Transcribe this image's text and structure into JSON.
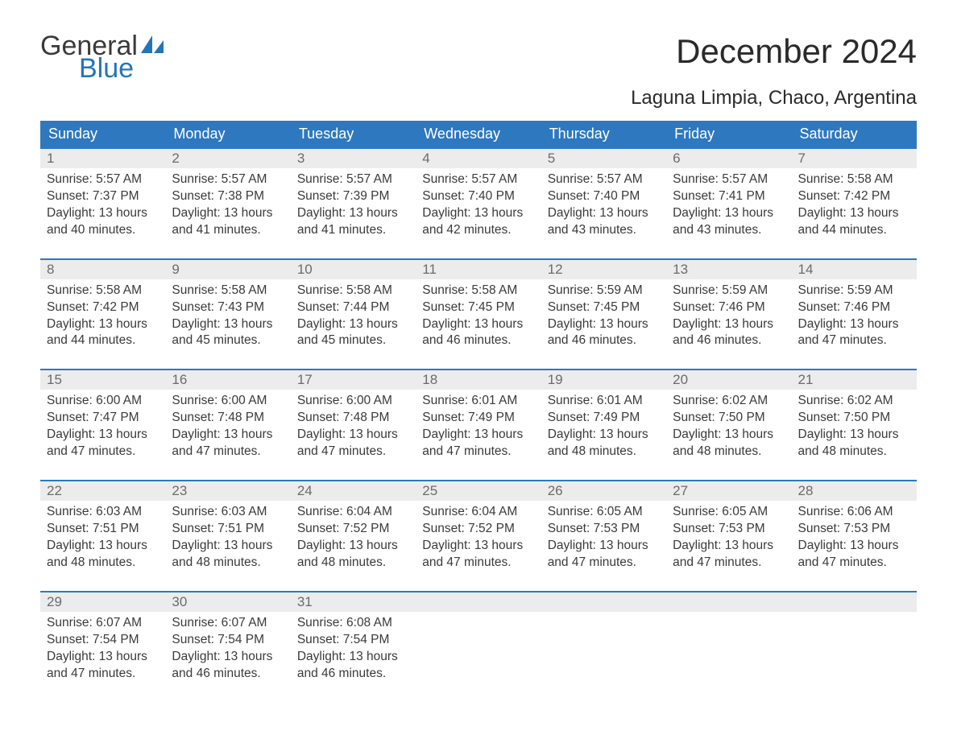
{
  "logo": {
    "text_general": "General",
    "text_blue": "Blue",
    "sail_color": "#2474b8"
  },
  "title": "December 2024",
  "location": "Laguna Limpia, Chaco, Argentina",
  "colors": {
    "header_bg": "#2e78bf",
    "header_text": "#ffffff",
    "daynum_bg": "#ececec",
    "daynum_text": "#6b6b6b",
    "body_text": "#3a3a3a",
    "row_border": "#2e78bf"
  },
  "weekdays": [
    "Sunday",
    "Monday",
    "Tuesday",
    "Wednesday",
    "Thursday",
    "Friday",
    "Saturday"
  ],
  "labels": {
    "sunrise": "Sunrise:",
    "sunset": "Sunset:",
    "daylight": "Daylight:"
  },
  "weeks": [
    [
      {
        "n": "1",
        "sunrise": "5:57 AM",
        "sunset": "7:37 PM",
        "daylight_l1": "13 hours",
        "daylight_l2": "and 40 minutes."
      },
      {
        "n": "2",
        "sunrise": "5:57 AM",
        "sunset": "7:38 PM",
        "daylight_l1": "13 hours",
        "daylight_l2": "and 41 minutes."
      },
      {
        "n": "3",
        "sunrise": "5:57 AM",
        "sunset": "7:39 PM",
        "daylight_l1": "13 hours",
        "daylight_l2": "and 41 minutes."
      },
      {
        "n": "4",
        "sunrise": "5:57 AM",
        "sunset": "7:40 PM",
        "daylight_l1": "13 hours",
        "daylight_l2": "and 42 minutes."
      },
      {
        "n": "5",
        "sunrise": "5:57 AM",
        "sunset": "7:40 PM",
        "daylight_l1": "13 hours",
        "daylight_l2": "and 43 minutes."
      },
      {
        "n": "6",
        "sunrise": "5:57 AM",
        "sunset": "7:41 PM",
        "daylight_l1": "13 hours",
        "daylight_l2": "and 43 minutes."
      },
      {
        "n": "7",
        "sunrise": "5:58 AM",
        "sunset": "7:42 PM",
        "daylight_l1": "13 hours",
        "daylight_l2": "and 44 minutes."
      }
    ],
    [
      {
        "n": "8",
        "sunrise": "5:58 AM",
        "sunset": "7:42 PM",
        "daylight_l1": "13 hours",
        "daylight_l2": "and 44 minutes."
      },
      {
        "n": "9",
        "sunrise": "5:58 AM",
        "sunset": "7:43 PM",
        "daylight_l1": "13 hours",
        "daylight_l2": "and 45 minutes."
      },
      {
        "n": "10",
        "sunrise": "5:58 AM",
        "sunset": "7:44 PM",
        "daylight_l1": "13 hours",
        "daylight_l2": "and 45 minutes."
      },
      {
        "n": "11",
        "sunrise": "5:58 AM",
        "sunset": "7:45 PM",
        "daylight_l1": "13 hours",
        "daylight_l2": "and 46 minutes."
      },
      {
        "n": "12",
        "sunrise": "5:59 AM",
        "sunset": "7:45 PM",
        "daylight_l1": "13 hours",
        "daylight_l2": "and 46 minutes."
      },
      {
        "n": "13",
        "sunrise": "5:59 AM",
        "sunset": "7:46 PM",
        "daylight_l1": "13 hours",
        "daylight_l2": "and 46 minutes."
      },
      {
        "n": "14",
        "sunrise": "5:59 AM",
        "sunset": "7:46 PM",
        "daylight_l1": "13 hours",
        "daylight_l2": "and 47 minutes."
      }
    ],
    [
      {
        "n": "15",
        "sunrise": "6:00 AM",
        "sunset": "7:47 PM",
        "daylight_l1": "13 hours",
        "daylight_l2": "and 47 minutes."
      },
      {
        "n": "16",
        "sunrise": "6:00 AM",
        "sunset": "7:48 PM",
        "daylight_l1": "13 hours",
        "daylight_l2": "and 47 minutes."
      },
      {
        "n": "17",
        "sunrise": "6:00 AM",
        "sunset": "7:48 PM",
        "daylight_l1": "13 hours",
        "daylight_l2": "and 47 minutes."
      },
      {
        "n": "18",
        "sunrise": "6:01 AM",
        "sunset": "7:49 PM",
        "daylight_l1": "13 hours",
        "daylight_l2": "and 47 minutes."
      },
      {
        "n": "19",
        "sunrise": "6:01 AM",
        "sunset": "7:49 PM",
        "daylight_l1": "13 hours",
        "daylight_l2": "and 48 minutes."
      },
      {
        "n": "20",
        "sunrise": "6:02 AM",
        "sunset": "7:50 PM",
        "daylight_l1": "13 hours",
        "daylight_l2": "and 48 minutes."
      },
      {
        "n": "21",
        "sunrise": "6:02 AM",
        "sunset": "7:50 PM",
        "daylight_l1": "13 hours",
        "daylight_l2": "and 48 minutes."
      }
    ],
    [
      {
        "n": "22",
        "sunrise": "6:03 AM",
        "sunset": "7:51 PM",
        "daylight_l1": "13 hours",
        "daylight_l2": "and 48 minutes."
      },
      {
        "n": "23",
        "sunrise": "6:03 AM",
        "sunset": "7:51 PM",
        "daylight_l1": "13 hours",
        "daylight_l2": "and 48 minutes."
      },
      {
        "n": "24",
        "sunrise": "6:04 AM",
        "sunset": "7:52 PM",
        "daylight_l1": "13 hours",
        "daylight_l2": "and 48 minutes."
      },
      {
        "n": "25",
        "sunrise": "6:04 AM",
        "sunset": "7:52 PM",
        "daylight_l1": "13 hours",
        "daylight_l2": "and 47 minutes."
      },
      {
        "n": "26",
        "sunrise": "6:05 AM",
        "sunset": "7:53 PM",
        "daylight_l1": "13 hours",
        "daylight_l2": "and 47 minutes."
      },
      {
        "n": "27",
        "sunrise": "6:05 AM",
        "sunset": "7:53 PM",
        "daylight_l1": "13 hours",
        "daylight_l2": "and 47 minutes."
      },
      {
        "n": "28",
        "sunrise": "6:06 AM",
        "sunset": "7:53 PM",
        "daylight_l1": "13 hours",
        "daylight_l2": "and 47 minutes."
      }
    ],
    [
      {
        "n": "29",
        "sunrise": "6:07 AM",
        "sunset": "7:54 PM",
        "daylight_l1": "13 hours",
        "daylight_l2": "and 47 minutes."
      },
      {
        "n": "30",
        "sunrise": "6:07 AM",
        "sunset": "7:54 PM",
        "daylight_l1": "13 hours",
        "daylight_l2": "and 46 minutes."
      },
      {
        "n": "31",
        "sunrise": "6:08 AM",
        "sunset": "7:54 PM",
        "daylight_l1": "13 hours",
        "daylight_l2": "and 46 minutes."
      },
      null,
      null,
      null,
      null
    ]
  ]
}
